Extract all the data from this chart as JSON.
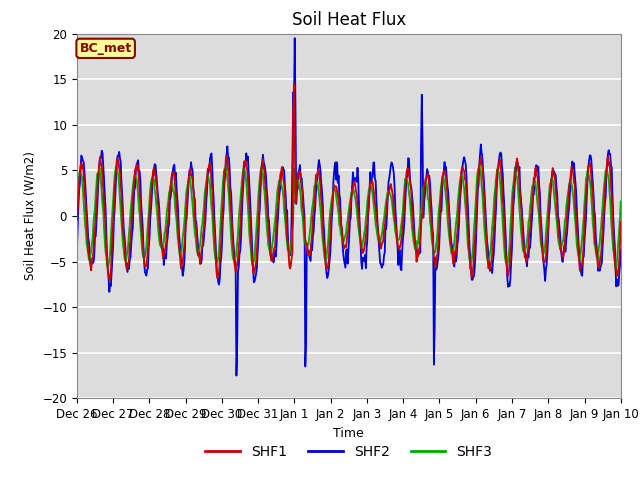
{
  "title": "Soil Heat Flux",
  "ylabel": "Soil Heat Flux (W/m2)",
  "xlabel": "Time",
  "ylim": [
    -20,
    20
  ],
  "bg_color": "#dcdcdc",
  "grid_color": "white",
  "annotation_text": "BC_met",
  "annotation_bg": "#ffff99",
  "annotation_border": "#8b0000",
  "line_colors": {
    "SHF1": "#cc0000",
    "SHF2": "#0000dd",
    "SHF3": "#00aa00"
  },
  "line_width": 1.3,
  "tick_labels": [
    "Dec 26",
    "Dec 27",
    "Dec 28",
    "Dec 29",
    "Dec 30",
    "Dec 31",
    "Jan 1",
    "Jan 2",
    "Jan 3",
    "Jan 4",
    "Jan 5",
    "Jan 6",
    "Jan 7",
    "Jan 8",
    "Jan 9",
    "Jan 10"
  ],
  "num_days": 15,
  "pts_per_day": 48
}
